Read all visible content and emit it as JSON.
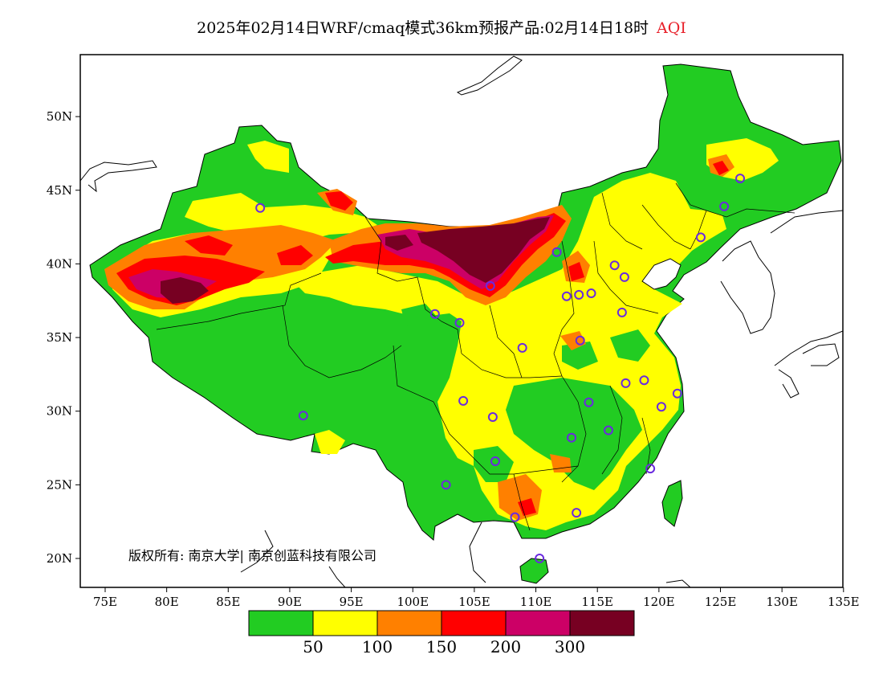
{
  "title": {
    "main": "2025年02月14日WRF/cmaq模式36km预报产品:02月14日18时",
    "variable": "AQI"
  },
  "axes": {
    "lon_ticks": [
      "75E",
      "80E",
      "85E",
      "90E",
      "95E",
      "100E",
      "105E",
      "110E",
      "115E",
      "120E",
      "125E",
      "130E",
      "135E"
    ],
    "lat_ticks": [
      "20N",
      "25N",
      "30N",
      "35N",
      "40N",
      "45N",
      "50N"
    ],
    "lon_range": [
      73,
      135
    ],
    "lat_range": [
      18,
      54
    ]
  },
  "copyright": "版权所有: 南京大学| 南京创蓝科技有限公司",
  "legend": {
    "colors": [
      "#22cc22",
      "#ffff00",
      "#ff8000",
      "#ff0000",
      "#cc0066",
      "#770022"
    ],
    "labels": [
      "50",
      "100",
      "150",
      "200",
      "300"
    ]
  },
  "stations": [
    [
      87.6,
      43.8
    ],
    [
      91.1,
      29.7
    ],
    [
      101.8,
      36.6
    ],
    [
      103.8,
      36.0
    ],
    [
      106.3,
      38.5
    ],
    [
      111.7,
      40.8
    ],
    [
      113.5,
      37.9
    ],
    [
      112.5,
      37.8
    ],
    [
      116.4,
      39.9
    ],
    [
      117.2,
      39.1
    ],
    [
      114.5,
      38.0
    ],
    [
      117.0,
      36.7
    ],
    [
      113.6,
      34.8
    ],
    [
      108.9,
      34.3
    ],
    [
      104.1,
      30.7
    ],
    [
      106.5,
      29.6
    ],
    [
      106.7,
      26.6
    ],
    [
      102.7,
      25.0
    ],
    [
      108.3,
      22.8
    ],
    [
      113.3,
      23.1
    ],
    [
      110.3,
      20.0
    ],
    [
      112.9,
      28.2
    ],
    [
      114.3,
      30.6
    ],
    [
      115.9,
      28.7
    ],
    [
      117.3,
      31.9
    ],
    [
      118.8,
      32.1
    ],
    [
      121.5,
      31.2
    ],
    [
      120.2,
      30.3
    ],
    [
      119.3,
      26.1
    ],
    [
      123.4,
      41.8
    ],
    [
      125.3,
      43.9
    ],
    [
      126.6,
      45.8
    ]
  ]
}
